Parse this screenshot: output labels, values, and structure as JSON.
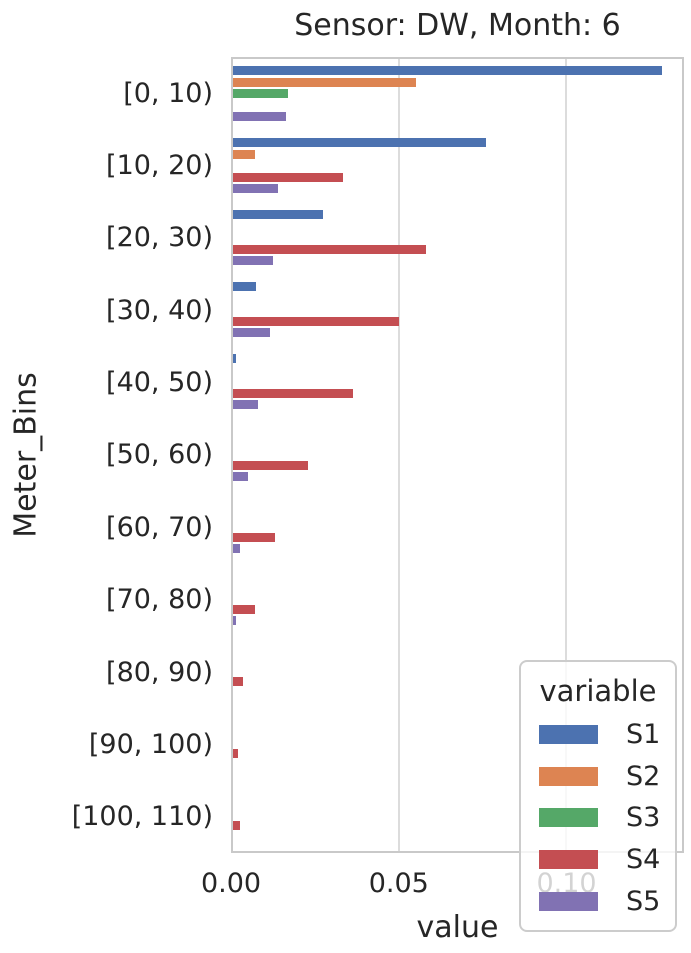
{
  "chart_data": {
    "type": "bar",
    "orientation": "horizontal",
    "title": "Sensor: DW, Month: 6",
    "xlabel": "value",
    "ylabel": "Meter_Bins",
    "categories": [
      "[0, 10)",
      "[10, 20)",
      "[20, 30)",
      "[30, 40)",
      "[40, 50)",
      "[50, 60)",
      "[60, 70)",
      "[70, 80)",
      "[80, 90)",
      "[90, 100)",
      "[100, 110)"
    ],
    "series": [
      {
        "name": "S1",
        "color": "#4C72B0",
        "values": [
          0.129,
          0.076,
          0.027,
          0.007,
          0.001,
          0,
          0,
          0,
          0,
          0,
          0
        ]
      },
      {
        "name": "S2",
        "color": "#DD8452",
        "values": [
          0.055,
          0.0065,
          0,
          0,
          0,
          0,
          0,
          0,
          0,
          0,
          0
        ]
      },
      {
        "name": "S3",
        "color": "#55A868",
        "values": [
          0.0165,
          0,
          0,
          0,
          0,
          0,
          0,
          0,
          0,
          0,
          0
        ]
      },
      {
        "name": "S4",
        "color": "#C44E52",
        "values": [
          0,
          0.033,
          0.058,
          0.05,
          0.036,
          0.0225,
          0.0125,
          0.0065,
          0.003,
          0.0015,
          0.002
        ]
      },
      {
        "name": "S5",
        "color": "#8172B3",
        "values": [
          0.016,
          0.0135,
          0.012,
          0.011,
          0.0075,
          0.0045,
          0.002,
          0.0008,
          0,
          0,
          0
        ]
      }
    ],
    "xlim": [
      0,
      0.135
    ],
    "xticks": [
      {
        "value": 0.0,
        "label": "0.00"
      },
      {
        "value": 0.05,
        "label": "0.05"
      },
      {
        "value": 0.1,
        "label": "0.10"
      }
    ],
    "grid": true,
    "gridline_color": "#dcdcdc",
    "spine_color": "#c9c9c9",
    "legend": {
      "title": "variable",
      "position": "lower-right",
      "entries": [
        "S1",
        "S2",
        "S3",
        "S4",
        "S5"
      ]
    }
  }
}
